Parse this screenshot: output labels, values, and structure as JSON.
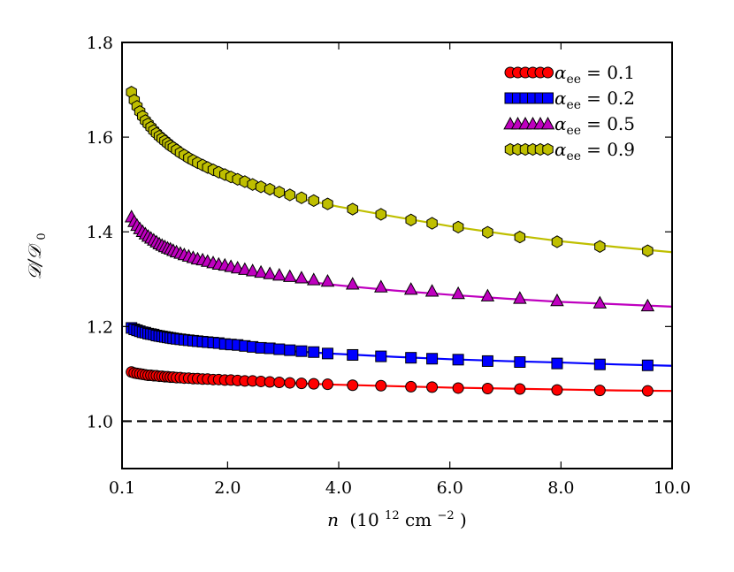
{
  "chart_data": {
    "type": "line",
    "title": "",
    "xlabel": "n (10^12 cm^-2)",
    "xlabel_parts": {
      "var": "n",
      "open": "(10",
      "exp1": "12",
      "unit": " cm",
      "exp2": "−2",
      "close": ")"
    },
    "ylabel": "D/D0",
    "ylabel_parts": {
      "main": "𝒟/𝒟",
      "sub": "0"
    },
    "xlim": [
      0.1,
      10.0
    ],
    "ylim": [
      0.9,
      1.8
    ],
    "x_ticks": [
      0.1,
      2.0,
      4.0,
      6.0,
      8.0,
      10.0
    ],
    "x_tick_labels": [
      "0.1",
      "2.0",
      "4.0",
      "6.0",
      "8.0",
      "10.0"
    ],
    "y_ticks": [
      1.0,
      1.2,
      1.4,
      1.6,
      1.8
    ],
    "y_tick_labels": [
      "1.0",
      "1.2",
      "1.4",
      "1.6",
      "1.8"
    ],
    "grid": false,
    "legend_position": "top-right",
    "reference_line": {
      "y": 1.0,
      "style": "dashed",
      "color": "#000000"
    },
    "series": [
      {
        "name": "α_ee = 0.1",
        "legend_sym": "α",
        "legend_sub": "ee",
        "legend_val": "= 0.1",
        "marker": "circle",
        "marker_fill": "#ff0000",
        "line_color": "#ff0000",
        "points": [
          [
            0.3,
            1.104
          ],
          [
            0.6,
            1.097
          ],
          [
            1.0,
            1.093
          ],
          [
            1.5,
            1.089
          ],
          [
            2.0,
            1.086
          ],
          [
            2.5,
            1.084
          ],
          [
            3.0,
            1.081
          ],
          [
            4.0,
            1.077
          ],
          [
            5.0,
            1.074
          ],
          [
            6.0,
            1.071
          ],
          [
            7.0,
            1.069
          ],
          [
            8.0,
            1.067
          ],
          [
            9.0,
            1.065
          ],
          [
            10.0,
            1.064
          ]
        ],
        "markers": [
          [
            0.27,
            1.104
          ],
          [
            0.32,
            1.102
          ],
          [
            0.37,
            1.101
          ],
          [
            0.42,
            1.1
          ],
          [
            0.47,
            1.099
          ],
          [
            0.52,
            1.098
          ],
          [
            0.57,
            1.097
          ],
          [
            0.62,
            1.097
          ],
          [
            0.67,
            1.096
          ],
          [
            0.72,
            1.096
          ],
          [
            0.77,
            1.095
          ],
          [
            0.82,
            1.095
          ],
          [
            0.87,
            1.094
          ],
          [
            0.92,
            1.094
          ],
          [
            0.97,
            1.093
          ],
          [
            1.02,
            1.093
          ],
          [
            1.08,
            1.092
          ],
          [
            1.15,
            1.092
          ],
          [
            1.22,
            1.091
          ],
          [
            1.3,
            1.091
          ],
          [
            1.38,
            1.09
          ],
          [
            1.46,
            1.09
          ],
          [
            1.55,
            1.089
          ],
          [
            1.64,
            1.089
          ],
          [
            1.74,
            1.088
          ],
          [
            1.84,
            1.088
          ],
          [
            1.95,
            1.087
          ],
          [
            2.06,
            1.087
          ],
          [
            2.18,
            1.086
          ],
          [
            2.31,
            1.085
          ],
          [
            2.45,
            1.085
          ],
          [
            2.6,
            1.084
          ],
          [
            2.76,
            1.083
          ],
          [
            2.93,
            1.082
          ],
          [
            3.12,
            1.081
          ],
          [
            3.33,
            1.08
          ],
          [
            3.55,
            1.079
          ],
          [
            3.8,
            1.078
          ],
          [
            4.25,
            1.076
          ],
          [
            4.76,
            1.075
          ],
          [
            5.3,
            1.073
          ],
          [
            5.68,
            1.072
          ],
          [
            6.15,
            1.07
          ],
          [
            6.68,
            1.069
          ],
          [
            7.26,
            1.068
          ],
          [
            7.93,
            1.066
          ],
          [
            8.7,
            1.065
          ],
          [
            9.56,
            1.064
          ]
        ]
      },
      {
        "name": "α_ee = 0.2",
        "legend_sym": "α",
        "legend_sub": "ee",
        "legend_val": "= 0.2",
        "marker": "square",
        "marker_fill": "#0000ff",
        "line_color": "#0000ff",
        "points": [
          [
            0.3,
            1.197
          ],
          [
            0.6,
            1.186
          ],
          [
            1.0,
            1.175
          ],
          [
            1.5,
            1.166
          ],
          [
            2.0,
            1.16
          ],
          [
            2.5,
            1.154
          ],
          [
            3.0,
            1.149
          ],
          [
            4.0,
            1.142
          ],
          [
            5.0,
            1.136
          ],
          [
            6.0,
            1.131
          ],
          [
            7.0,
            1.127
          ],
          [
            8.0,
            1.124
          ],
          [
            9.0,
            1.12
          ],
          [
            10.0,
            1.117
          ]
        ],
        "markers": [
          [
            0.27,
            1.197
          ],
          [
            0.32,
            1.194
          ],
          [
            0.37,
            1.192
          ],
          [
            0.42,
            1.19
          ],
          [
            0.47,
            1.188
          ],
          [
            0.52,
            1.187
          ],
          [
            0.57,
            1.185
          ],
          [
            0.62,
            1.184
          ],
          [
            0.67,
            1.183
          ],
          [
            0.72,
            1.181
          ],
          [
            0.77,
            1.18
          ],
          [
            0.82,
            1.179
          ],
          [
            0.87,
            1.178
          ],
          [
            0.92,
            1.177
          ],
          [
            0.97,
            1.176
          ],
          [
            1.02,
            1.175
          ],
          [
            1.08,
            1.174
          ],
          [
            1.15,
            1.173
          ],
          [
            1.22,
            1.172
          ],
          [
            1.3,
            1.171
          ],
          [
            1.38,
            1.17
          ],
          [
            1.46,
            1.169
          ],
          [
            1.55,
            1.168
          ],
          [
            1.64,
            1.167
          ],
          [
            1.74,
            1.166
          ],
          [
            1.84,
            1.165
          ],
          [
            1.95,
            1.163
          ],
          [
            2.06,
            1.162
          ],
          [
            2.18,
            1.161
          ],
          [
            2.31,
            1.159
          ],
          [
            2.45,
            1.157
          ],
          [
            2.6,
            1.155
          ],
          [
            2.76,
            1.154
          ],
          [
            2.93,
            1.152
          ],
          [
            3.12,
            1.15
          ],
          [
            3.33,
            1.148
          ],
          [
            3.55,
            1.146
          ],
          [
            3.8,
            1.143
          ],
          [
            4.25,
            1.14
          ],
          [
            4.76,
            1.137
          ],
          [
            5.3,
            1.134
          ],
          [
            5.68,
            1.132
          ],
          [
            6.15,
            1.13
          ],
          [
            6.68,
            1.127
          ],
          [
            7.26,
            1.125
          ],
          [
            7.93,
            1.122
          ],
          [
            8.7,
            1.12
          ],
          [
            9.56,
            1.118
          ]
        ]
      },
      {
        "name": "α_ee = 0.5",
        "legend_sym": "α",
        "legend_sub": "ee",
        "legend_val": "= 0.5",
        "marker": "triangle",
        "marker_fill": "#bf00bf",
        "line_color": "#bf00bf",
        "points": [
          [
            0.3,
            1.432
          ],
          [
            0.6,
            1.39
          ],
          [
            1.0,
            1.363
          ],
          [
            1.5,
            1.337
          ],
          [
            2.0,
            1.322
          ],
          [
            2.5,
            1.31
          ],
          [
            3.0,
            1.3
          ],
          [
            4.0,
            1.287
          ],
          [
            5.0,
            1.276
          ],
          [
            6.0,
            1.267
          ],
          [
            7.0,
            1.259
          ],
          [
            8.0,
            1.252
          ],
          [
            9.0,
            1.247
          ],
          [
            10.0,
            1.242
          ]
        ],
        "markers": [
          [
            0.27,
            1.432
          ],
          [
            0.32,
            1.422
          ],
          [
            0.37,
            1.414
          ],
          [
            0.42,
            1.407
          ],
          [
            0.47,
            1.401
          ],
          [
            0.52,
            1.396
          ],
          [
            0.57,
            1.391
          ],
          [
            0.62,
            1.387
          ],
          [
            0.67,
            1.383
          ],
          [
            0.72,
            1.379
          ],
          [
            0.77,
            1.375
          ],
          [
            0.82,
            1.372
          ],
          [
            0.87,
            1.369
          ],
          [
            0.92,
            1.366
          ],
          [
            0.97,
            1.364
          ],
          [
            1.02,
            1.361
          ],
          [
            1.08,
            1.358
          ],
          [
            1.15,
            1.355
          ],
          [
            1.22,
            1.352
          ],
          [
            1.3,
            1.349
          ],
          [
            1.38,
            1.346
          ],
          [
            1.46,
            1.343
          ],
          [
            1.55,
            1.341
          ],
          [
            1.64,
            1.338
          ],
          [
            1.74,
            1.335
          ],
          [
            1.84,
            1.332
          ],
          [
            1.95,
            1.33
          ],
          [
            2.06,
            1.327
          ],
          [
            2.18,
            1.324
          ],
          [
            2.31,
            1.321
          ],
          [
            2.45,
            1.318
          ],
          [
            2.6,
            1.315
          ],
          [
            2.76,
            1.312
          ],
          [
            2.93,
            1.309
          ],
          [
            3.12,
            1.306
          ],
          [
            3.33,
            1.303
          ],
          [
            3.55,
            1.299
          ],
          [
            3.8,
            1.296
          ],
          [
            4.25,
            1.29
          ],
          [
            4.76,
            1.284
          ],
          [
            5.3,
            1.279
          ],
          [
            5.68,
            1.275
          ],
          [
            6.15,
            1.27
          ],
          [
            6.68,
            1.265
          ],
          [
            7.26,
            1.26
          ],
          [
            7.93,
            1.255
          ],
          [
            8.7,
            1.25
          ],
          [
            9.56,
            1.244
          ]
        ]
      },
      {
        "name": "α_ee = 0.9",
        "legend_sym": "α",
        "legend_sub": "ee",
        "legend_val": "= 0.9",
        "marker": "hexagon",
        "marker_fill": "#bfbf00",
        "line_color": "#bfbf00",
        "points": [
          [
            0.3,
            1.695
          ],
          [
            0.6,
            1.62
          ],
          [
            1.0,
            1.573
          ],
          [
            1.5,
            1.535
          ],
          [
            2.0,
            1.51
          ],
          [
            2.5,
            1.493
          ],
          [
            3.0,
            1.478
          ],
          [
            4.0,
            1.453
          ],
          [
            5.0,
            1.432
          ],
          [
            6.0,
            1.412
          ],
          [
            7.0,
            1.395
          ],
          [
            8.0,
            1.38
          ],
          [
            9.0,
            1.368
          ],
          [
            10.0,
            1.357
          ]
        ],
        "markers": [
          [
            0.27,
            1.695
          ],
          [
            0.32,
            1.678
          ],
          [
            0.37,
            1.665
          ],
          [
            0.42,
            1.654
          ],
          [
            0.47,
            1.644
          ],
          [
            0.52,
            1.635
          ],
          [
            0.57,
            1.628
          ],
          [
            0.62,
            1.621
          ],
          [
            0.67,
            1.614
          ],
          [
            0.72,
            1.608
          ],
          [
            0.77,
            1.602
          ],
          [
            0.82,
            1.597
          ],
          [
            0.87,
            1.592
          ],
          [
            0.92,
            1.587
          ],
          [
            0.97,
            1.582
          ],
          [
            1.02,
            1.578
          ],
          [
            1.08,
            1.573
          ],
          [
            1.15,
            1.567
          ],
          [
            1.22,
            1.562
          ],
          [
            1.3,
            1.556
          ],
          [
            1.38,
            1.551
          ],
          [
            1.46,
            1.546
          ],
          [
            1.55,
            1.541
          ],
          [
            1.64,
            1.536
          ],
          [
            1.74,
            1.531
          ],
          [
            1.84,
            1.526
          ],
          [
            1.95,
            1.521
          ],
          [
            2.06,
            1.516
          ],
          [
            2.18,
            1.511
          ],
          [
            2.31,
            1.506
          ],
          [
            2.45,
            1.5
          ],
          [
            2.6,
            1.495
          ],
          [
            2.76,
            1.49
          ],
          [
            2.93,
            1.484
          ],
          [
            3.12,
            1.478
          ],
          [
            3.33,
            1.472
          ],
          [
            3.55,
            1.466
          ],
          [
            3.8,
            1.459
          ],
          [
            4.25,
            1.448
          ],
          [
            4.76,
            1.437
          ],
          [
            5.3,
            1.425
          ],
          [
            5.68,
            1.418
          ],
          [
            6.15,
            1.41
          ],
          [
            6.68,
            1.399
          ],
          [
            7.26,
            1.389
          ],
          [
            7.93,
            1.379
          ],
          [
            8.7,
            1.369
          ],
          [
            9.56,
            1.36
          ]
        ]
      }
    ]
  }
}
